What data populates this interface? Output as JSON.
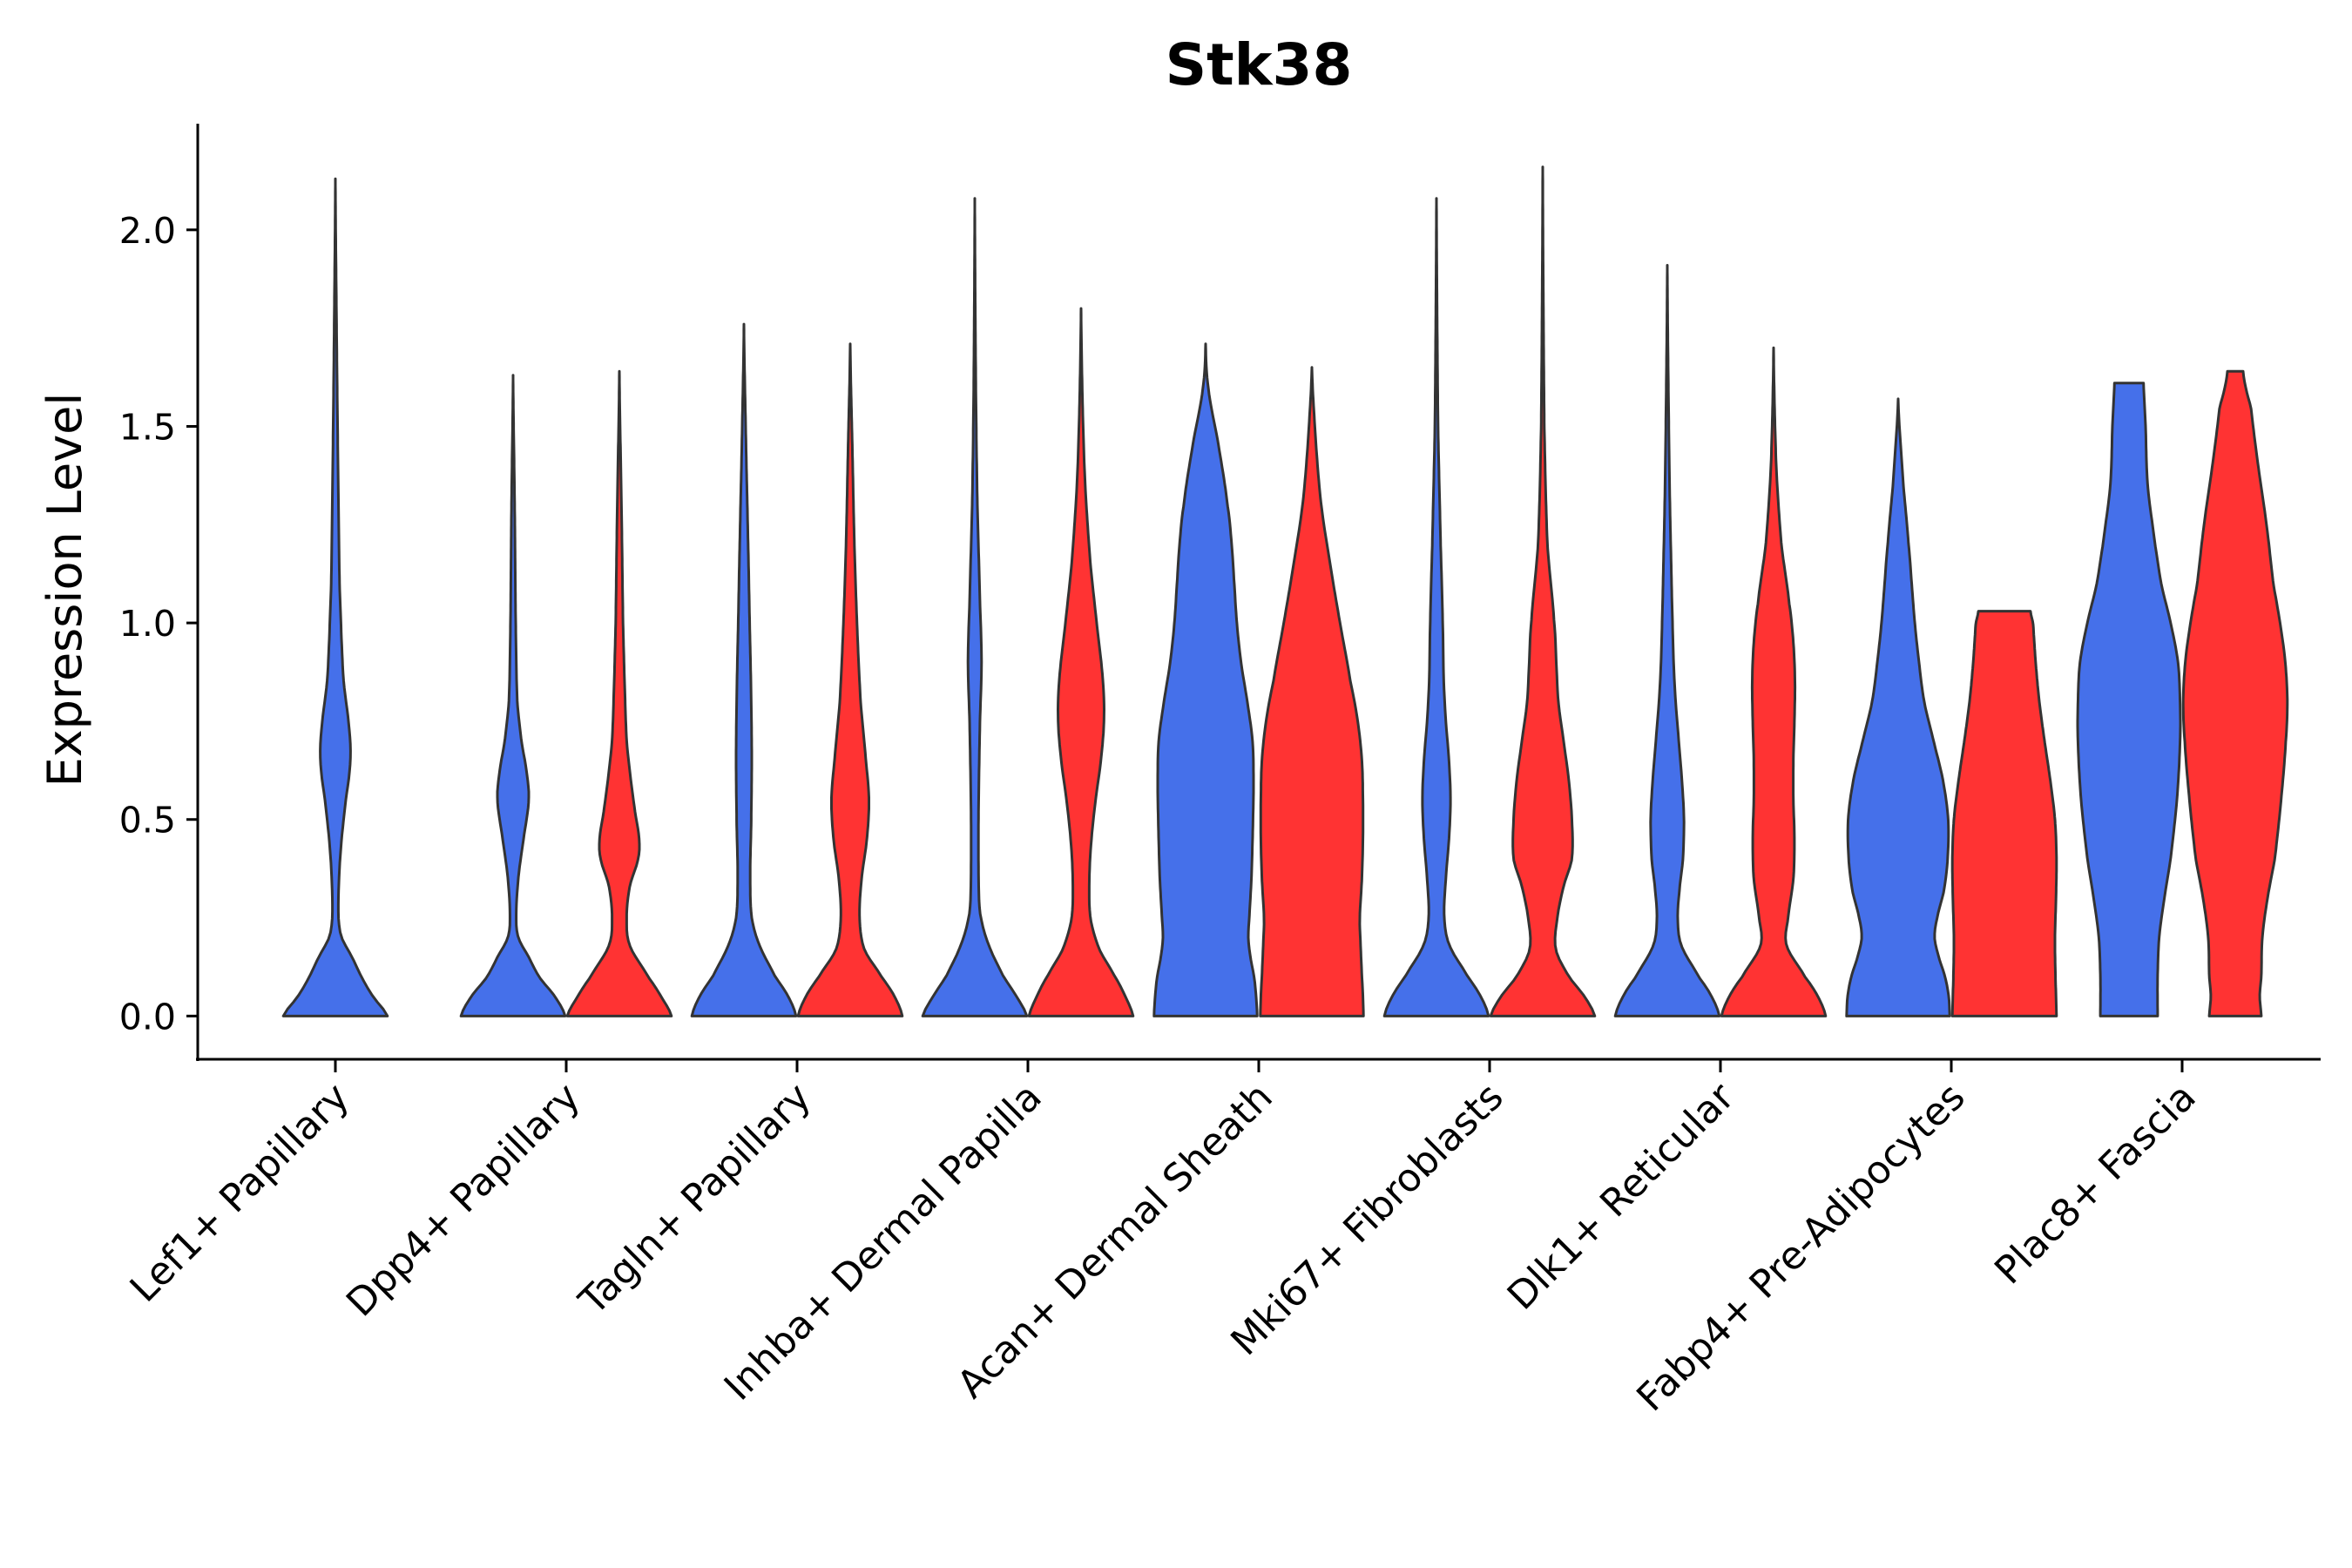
{
  "chart_data": {
    "type": "violin",
    "title": "Stk38",
    "xlabel": "",
    "ylabel": "Expression Level",
    "ylim": [
      -0.11,
      2.27
    ],
    "yticks": [
      "0.0",
      "0.5",
      "1.0",
      "1.5",
      "2.0"
    ],
    "ytick_values": [
      0.0,
      0.5,
      1.0,
      1.5,
      2.0
    ],
    "colors": {
      "group1": "#4570EA",
      "group2": "#FF3333",
      "outline": "#333333"
    },
    "series_names": [
      "group1",
      "group2"
    ],
    "categories": [
      "Lef1+ Papillary",
      "Dpp4+ Papillary",
      "Tagln+ Papillary",
      "Inhba+ Dermal Papilla",
      "Acan+ Dermal Sheath",
      "Mki67+ Fibroblasts",
      "Dlk1+ Reticular",
      "Fabp4+ Pre-Adipocytes",
      "Plac8+ Fascia"
    ],
    "violins": [
      {
        "category": 0,
        "series": "group1",
        "offset": 0.0,
        "max": 2.13,
        "profile": [
          [
            0.0,
            1.0
          ],
          [
            0.05,
            0.72
          ],
          [
            0.1,
            0.5
          ],
          [
            0.15,
            0.32
          ],
          [
            0.2,
            0.12
          ],
          [
            0.25,
            0.06
          ],
          [
            0.35,
            0.07
          ],
          [
            0.45,
            0.12
          ],
          [
            0.55,
            0.2
          ],
          [
            0.62,
            0.27
          ],
          [
            0.68,
            0.29
          ],
          [
            0.75,
            0.25
          ],
          [
            0.85,
            0.16
          ],
          [
            0.95,
            0.12
          ],
          [
            1.1,
            0.08
          ],
          [
            1.4,
            0.05
          ],
          [
            1.8,
            0.02
          ],
          [
            2.13,
            0.0
          ]
        ]
      },
      {
        "category": 1,
        "series": "group1",
        "offset": -0.5,
        "max": 1.63,
        "profile": [
          [
            0.0,
            1.0
          ],
          [
            0.05,
            0.8
          ],
          [
            0.1,
            0.5
          ],
          [
            0.15,
            0.3
          ],
          [
            0.2,
            0.1
          ],
          [
            0.25,
            0.06
          ],
          [
            0.35,
            0.1
          ],
          [
            0.45,
            0.2
          ],
          [
            0.55,
            0.3
          ],
          [
            0.62,
            0.26
          ],
          [
            0.7,
            0.16
          ],
          [
            0.8,
            0.08
          ],
          [
            1.0,
            0.05
          ],
          [
            1.3,
            0.03
          ],
          [
            1.63,
            0.0
          ]
        ]
      },
      {
        "category": 1,
        "series": "group2",
        "offset": 0.5,
        "max": 1.64,
        "profile": [
          [
            0.0,
            1.0
          ],
          [
            0.05,
            0.8
          ],
          [
            0.1,
            0.55
          ],
          [
            0.18,
            0.2
          ],
          [
            0.25,
            0.14
          ],
          [
            0.33,
            0.2
          ],
          [
            0.4,
            0.36
          ],
          [
            0.45,
            0.38
          ],
          [
            0.52,
            0.3
          ],
          [
            0.6,
            0.22
          ],
          [
            0.7,
            0.14
          ],
          [
            0.85,
            0.1
          ],
          [
            1.0,
            0.07
          ],
          [
            1.3,
            0.04
          ],
          [
            1.64,
            0.0
          ]
        ]
      },
      {
        "category": 2,
        "series": "group1",
        "offset": -0.5,
        "max": 1.76,
        "profile": [
          [
            0.0,
            1.0
          ],
          [
            0.05,
            0.85
          ],
          [
            0.1,
            0.6
          ],
          [
            0.18,
            0.3
          ],
          [
            0.25,
            0.15
          ],
          [
            0.35,
            0.12
          ],
          [
            0.5,
            0.14
          ],
          [
            0.65,
            0.15
          ],
          [
            0.8,
            0.14
          ],
          [
            1.0,
            0.11
          ],
          [
            1.2,
            0.08
          ],
          [
            1.45,
            0.04
          ],
          [
            1.76,
            0.0
          ]
        ]
      },
      {
        "category": 2,
        "series": "group2",
        "offset": 0.5,
        "max": 1.71,
        "profile": [
          [
            0.0,
            1.0
          ],
          [
            0.05,
            0.85
          ],
          [
            0.1,
            0.6
          ],
          [
            0.17,
            0.27
          ],
          [
            0.25,
            0.18
          ],
          [
            0.35,
            0.22
          ],
          [
            0.45,
            0.32
          ],
          [
            0.55,
            0.36
          ],
          [
            0.65,
            0.3
          ],
          [
            0.8,
            0.2
          ],
          [
            1.0,
            0.13
          ],
          [
            1.2,
            0.08
          ],
          [
            1.45,
            0.04
          ],
          [
            1.71,
            0.0
          ]
        ]
      },
      {
        "category": 3,
        "series": "group1",
        "offset": -0.5,
        "max": 2.08,
        "profile": [
          [
            0.0,
            1.0
          ],
          [
            0.05,
            0.8
          ],
          [
            0.1,
            0.55
          ],
          [
            0.18,
            0.27
          ],
          [
            0.25,
            0.12
          ],
          [
            0.3,
            0.08
          ],
          [
            0.45,
            0.07
          ],
          [
            0.6,
            0.08
          ],
          [
            0.75,
            0.1
          ],
          [
            0.9,
            0.13
          ],
          [
            1.05,
            0.1
          ],
          [
            1.3,
            0.05
          ],
          [
            1.6,
            0.02
          ],
          [
            2.08,
            0.0
          ]
        ]
      },
      {
        "category": 3,
        "series": "group2",
        "offset": 0.5,
        "max": 1.8,
        "profile": [
          [
            0.0,
            1.0
          ],
          [
            0.05,
            0.85
          ],
          [
            0.1,
            0.65
          ],
          [
            0.17,
            0.35
          ],
          [
            0.25,
            0.18
          ],
          [
            0.35,
            0.16
          ],
          [
            0.45,
            0.2
          ],
          [
            0.55,
            0.28
          ],
          [
            0.65,
            0.38
          ],
          [
            0.75,
            0.44
          ],
          [
            0.85,
            0.42
          ],
          [
            1.0,
            0.3
          ],
          [
            1.15,
            0.18
          ],
          [
            1.35,
            0.08
          ],
          [
            1.55,
            0.03
          ],
          [
            1.8,
            0.0
          ]
        ]
      },
      {
        "category": 4,
        "series": "group1",
        "offset": -0.5,
        "max": 1.71,
        "profile": [
          [
            0.0,
            0.99
          ],
          [
            0.05,
            0.97
          ],
          [
            0.1,
            0.93
          ],
          [
            0.15,
            0.86
          ],
          [
            0.2,
            0.82
          ],
          [
            0.25,
            0.84
          ],
          [
            0.35,
            0.88
          ],
          [
            0.5,
            0.91
          ],
          [
            0.6,
            0.92
          ],
          [
            0.7,
            0.9
          ],
          [
            0.8,
            0.8
          ],
          [
            0.9,
            0.68
          ],
          [
            1.0,
            0.6
          ],
          [
            1.1,
            0.55
          ],
          [
            1.2,
            0.5
          ],
          [
            1.3,
            0.42
          ],
          [
            1.45,
            0.25
          ],
          [
            1.6,
            0.05
          ],
          [
            1.71,
            0.0
          ]
        ]
      },
      {
        "category": 4,
        "series": "group2",
        "offset": 0.5,
        "max": 1.65,
        "profile": [
          [
            0.0,
            0.99
          ],
          [
            0.05,
            0.98
          ],
          [
            0.1,
            0.96
          ],
          [
            0.2,
            0.93
          ],
          [
            0.25,
            0.92
          ],
          [
            0.35,
            0.96
          ],
          [
            0.45,
            0.98
          ],
          [
            0.55,
            0.98
          ],
          [
            0.65,
            0.96
          ],
          [
            0.75,
            0.88
          ],
          [
            0.85,
            0.74
          ],
          [
            1.0,
            0.54
          ],
          [
            1.15,
            0.35
          ],
          [
            1.3,
            0.18
          ],
          [
            1.45,
            0.08
          ],
          [
            1.65,
            0.0
          ]
        ]
      },
      {
        "category": 5,
        "series": "group1",
        "offset": -0.5,
        "max": 2.08,
        "profile": [
          [
            0.0,
            1.0
          ],
          [
            0.05,
            0.85
          ],
          [
            0.1,
            0.6
          ],
          [
            0.18,
            0.25
          ],
          [
            0.25,
            0.15
          ],
          [
            0.35,
            0.18
          ],
          [
            0.45,
            0.24
          ],
          [
            0.55,
            0.27
          ],
          [
            0.65,
            0.24
          ],
          [
            0.75,
            0.18
          ],
          [
            0.85,
            0.14
          ],
          [
            1.0,
            0.12
          ],
          [
            1.2,
            0.08
          ],
          [
            1.5,
            0.03
          ],
          [
            2.08,
            0.0
          ]
        ]
      },
      {
        "category": 5,
        "series": "group2",
        "offset": 0.5,
        "max": 2.16,
        "profile": [
          [
            0.0,
            1.0
          ],
          [
            0.05,
            0.8
          ],
          [
            0.1,
            0.5
          ],
          [
            0.17,
            0.25
          ],
          [
            0.25,
            0.28
          ],
          [
            0.33,
            0.4
          ],
          [
            0.4,
            0.56
          ],
          [
            0.5,
            0.56
          ],
          [
            0.6,
            0.5
          ],
          [
            0.7,
            0.4
          ],
          [
            0.8,
            0.3
          ],
          [
            0.9,
            0.26
          ],
          [
            1.0,
            0.22
          ],
          [
            1.2,
            0.09
          ],
          [
            1.5,
            0.03
          ],
          [
            2.16,
            0.0
          ]
        ]
      },
      {
        "category": 6,
        "series": "group1",
        "offset": -0.5,
        "max": 1.91,
        "profile": [
          [
            0.0,
            1.0
          ],
          [
            0.05,
            0.85
          ],
          [
            0.1,
            0.6
          ],
          [
            0.18,
            0.27
          ],
          [
            0.25,
            0.2
          ],
          [
            0.33,
            0.24
          ],
          [
            0.4,
            0.3
          ],
          [
            0.5,
            0.32
          ],
          [
            0.6,
            0.28
          ],
          [
            0.7,
            0.22
          ],
          [
            0.8,
            0.16
          ],
          [
            0.9,
            0.12
          ],
          [
            1.05,
            0.09
          ],
          [
            1.3,
            0.05
          ],
          [
            1.6,
            0.02
          ],
          [
            1.91,
            0.0
          ]
        ]
      },
      {
        "category": 6,
        "series": "group2",
        "offset": 0.5,
        "max": 1.7,
        "profile": [
          [
            0.0,
            1.0
          ],
          [
            0.05,
            0.85
          ],
          [
            0.1,
            0.6
          ],
          [
            0.18,
            0.25
          ],
          [
            0.25,
            0.28
          ],
          [
            0.35,
            0.38
          ],
          [
            0.45,
            0.4
          ],
          [
            0.55,
            0.38
          ],
          [
            0.65,
            0.38
          ],
          [
            0.75,
            0.4
          ],
          [
            0.85,
            0.41
          ],
          [
            0.95,
            0.38
          ],
          [
            1.05,
            0.3
          ],
          [
            1.2,
            0.15
          ],
          [
            1.4,
            0.05
          ],
          [
            1.7,
            0.0
          ]
        ]
      },
      {
        "category": 7,
        "series": "group1",
        "offset": -0.5,
        "max": 1.57,
        "profile": [
          [
            0.0,
            0.99
          ],
          [
            0.05,
            0.97
          ],
          [
            0.1,
            0.9
          ],
          [
            0.15,
            0.78
          ],
          [
            0.2,
            0.7
          ],
          [
            0.25,
            0.75
          ],
          [
            0.32,
            0.88
          ],
          [
            0.4,
            0.95
          ],
          [
            0.5,
            0.96
          ],
          [
            0.6,
            0.86
          ],
          [
            0.7,
            0.68
          ],
          [
            0.8,
            0.5
          ],
          [
            0.9,
            0.4
          ],
          [
            1.0,
            0.32
          ],
          [
            1.1,
            0.26
          ],
          [
            1.2,
            0.2
          ],
          [
            1.35,
            0.1
          ],
          [
            1.57,
            0.0
          ]
        ]
      },
      {
        "category": 7,
        "series": "group2",
        "offset": 0.5,
        "max": 1.03,
        "profile": [
          [
            0.0,
            1.0
          ],
          [
            0.1,
            0.98
          ],
          [
            0.2,
            0.97
          ],
          [
            0.3,
            0.99
          ],
          [
            0.4,
            1.0
          ],
          [
            0.5,
            0.97
          ],
          [
            0.6,
            0.88
          ],
          [
            0.7,
            0.77
          ],
          [
            0.8,
            0.67
          ],
          [
            0.9,
            0.6
          ],
          [
            1.0,
            0.55
          ],
          [
            1.03,
            0.5
          ]
        ]
      },
      {
        "category": 8,
        "series": "group1",
        "offset": -0.5,
        "max": 1.61,
        "profile": [
          [
            0.0,
            0.55
          ],
          [
            0.1,
            0.55
          ],
          [
            0.2,
            0.58
          ],
          [
            0.3,
            0.68
          ],
          [
            0.4,
            0.8
          ],
          [
            0.55,
            0.92
          ],
          [
            0.7,
            0.98
          ],
          [
            0.8,
            0.98
          ],
          [
            0.9,
            0.94
          ],
          [
            1.0,
            0.8
          ],
          [
            1.1,
            0.62
          ],
          [
            1.2,
            0.5
          ],
          [
            1.35,
            0.36
          ],
          [
            1.5,
            0.32
          ],
          [
            1.55,
            0.3
          ],
          [
            1.61,
            0.28
          ]
        ]
      },
      {
        "category": 8,
        "series": "group2",
        "offset": 0.5,
        "max": 1.64,
        "profile": [
          [
            0.0,
            0.5
          ],
          [
            0.05,
            0.47
          ],
          [
            0.1,
            0.5
          ],
          [
            0.2,
            0.52
          ],
          [
            0.3,
            0.62
          ],
          [
            0.4,
            0.76
          ],
          [
            0.55,
            0.88
          ],
          [
            0.7,
            0.97
          ],
          [
            0.8,
            1.0
          ],
          [
            0.9,
            0.96
          ],
          [
            1.0,
            0.86
          ],
          [
            1.1,
            0.73
          ],
          [
            1.25,
            0.6
          ],
          [
            1.4,
            0.44
          ],
          [
            1.55,
            0.3
          ],
          [
            1.6,
            0.2
          ],
          [
            1.64,
            0.15
          ]
        ]
      }
    ]
  }
}
